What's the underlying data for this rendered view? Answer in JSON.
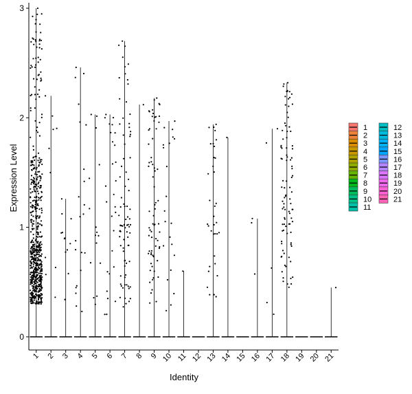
{
  "chart_data": {
    "type": "violin",
    "title": "",
    "xlabel": "Identity",
    "ylabel": "Expression Level",
    "categories": [
      "1",
      "2",
      "3",
      "4",
      "5",
      "6",
      "7",
      "8",
      "9",
      "10",
      "11",
      "12",
      "13",
      "14",
      "15",
      "16",
      "17",
      "18",
      "19",
      "20",
      "21"
    ],
    "yticks": [
      0,
      1,
      2,
      3
    ],
    "ylim": [
      -0.12,
      3.05
    ],
    "max_values": [
      3.0,
      2.2,
      1.26,
      2.46,
      2.03,
      2.03,
      2.7,
      2.12,
      2.18,
      1.97,
      0.6,
      0.0,
      1.94,
      1.82,
      0.0,
      1.08,
      1.9,
      2.32,
      0.0,
      0.0,
      0.45
    ],
    "nonzero_points": [
      {
        "identity": "1",
        "count": 640,
        "dist": "dense"
      },
      {
        "identity": "2",
        "count": 10,
        "dist": "sparse"
      },
      {
        "identity": "3",
        "count": 12,
        "dist": "sparse"
      },
      {
        "identity": "4",
        "count": 22,
        "dist": "sparse"
      },
      {
        "identity": "5",
        "count": 16,
        "dist": "sparse"
      },
      {
        "identity": "6",
        "count": 28,
        "dist": "sparse"
      },
      {
        "identity": "7",
        "count": 85,
        "dist": "medium"
      },
      {
        "identity": "8",
        "count": 1,
        "dist": "sparse"
      },
      {
        "identity": "9",
        "count": 70,
        "dist": "medium"
      },
      {
        "identity": "10",
        "count": 22,
        "dist": "sparse"
      },
      {
        "identity": "11",
        "count": 1,
        "dist": "sparse"
      },
      {
        "identity": "12",
        "count": 0,
        "dist": "none"
      },
      {
        "identity": "13",
        "count": 35,
        "dist": "medium"
      },
      {
        "identity": "14",
        "count": 1,
        "dist": "sparse"
      },
      {
        "identity": "15",
        "count": 0,
        "dist": "none"
      },
      {
        "identity": "16",
        "count": 3,
        "dist": "sparse"
      },
      {
        "identity": "17",
        "count": 5,
        "dist": "sparse"
      },
      {
        "identity": "18",
        "count": 95,
        "dist": "high"
      },
      {
        "identity": "19",
        "count": 0,
        "dist": "none"
      },
      {
        "identity": "20",
        "count": 0,
        "dist": "none"
      },
      {
        "identity": "21",
        "count": 1,
        "dist": "sparse"
      }
    ],
    "legend": {
      "placement": "right",
      "entries": [
        {
          "label": "1",
          "color": "#F8766D"
        },
        {
          "label": "2",
          "color": "#EC8239"
        },
        {
          "label": "3",
          "color": "#DB8E00"
        },
        {
          "label": "4",
          "color": "#C79800"
        },
        {
          "label": "5",
          "color": "#AEA200"
        },
        {
          "label": "6",
          "color": "#8FAA00"
        },
        {
          "label": "7",
          "color": "#64B200"
        },
        {
          "label": "8",
          "color": "#00B81B"
        },
        {
          "label": "9",
          "color": "#00BD5C"
        },
        {
          "label": "10",
          "color": "#00C085"
        },
        {
          "label": "11",
          "color": "#00C1A7"
        },
        {
          "label": "12",
          "color": "#00BFC4"
        },
        {
          "label": "13",
          "color": "#00BADE"
        },
        {
          "label": "14",
          "color": "#00B2F3"
        },
        {
          "label": "15",
          "color": "#00A6FF"
        },
        {
          "label": "16",
          "color": "#7C96FF"
        },
        {
          "label": "17",
          "color": "#B385FF"
        },
        {
          "label": "18",
          "color": "#D874FD"
        },
        {
          "label": "19",
          "color": "#EF67EB"
        },
        {
          "label": "20",
          "color": "#FD61D3"
        },
        {
          "label": "21",
          "color": "#FF63B6"
        }
      ]
    },
    "grid": false
  }
}
